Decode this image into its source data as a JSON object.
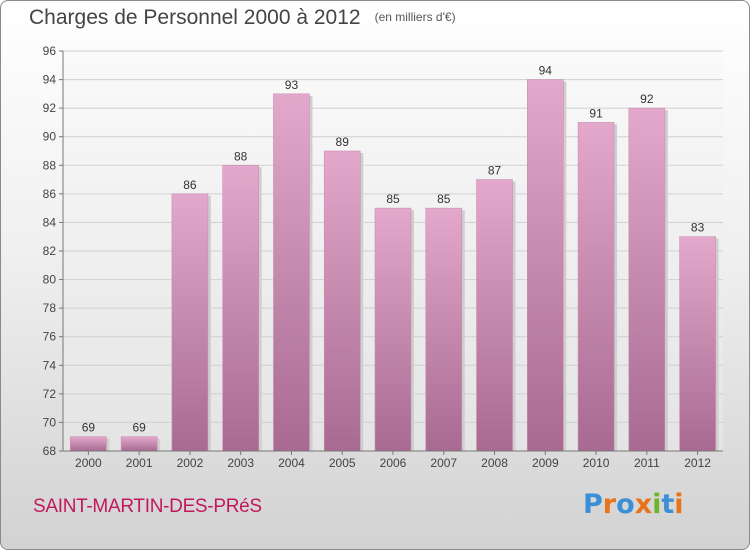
{
  "header": {
    "title": "Charges de Personnel 2000 à 2012",
    "unit": "(en milliers d'€)"
  },
  "footer": {
    "commune": "SAINT-MARTIN-DES-PRéS",
    "brand": "Proxiti"
  },
  "colors": {
    "bar_top": "#e3a8cb",
    "bar_bottom": "#a86a91",
    "commune_text": "#c2185b",
    "brand_letters": [
      "#3b8fd6",
      "#e8731a",
      "#3b8fd6",
      "#e8731a",
      "#71b62a",
      "#3b8fd6",
      "#e8731a"
    ]
  },
  "chart_data": {
    "type": "bar",
    "title": "Charges de Personnel 2000 à 2012",
    "subtitle": "(en milliers d'€)",
    "categories": [
      "2000",
      "2001",
      "2002",
      "2003",
      "2004",
      "2005",
      "2006",
      "2007",
      "2008",
      "2009",
      "2010",
      "2011",
      "2012"
    ],
    "values": [
      69,
      69,
      86,
      88,
      93,
      89,
      85,
      85,
      87,
      94,
      91,
      92,
      83
    ],
    "ylim": [
      68,
      96
    ],
    "yticks": [
      68,
      70,
      72,
      74,
      76,
      78,
      80,
      82,
      84,
      86,
      88,
      90,
      92,
      94,
      96
    ],
    "xlabel": "",
    "ylabel": "",
    "grid": true,
    "data_labels": true
  }
}
